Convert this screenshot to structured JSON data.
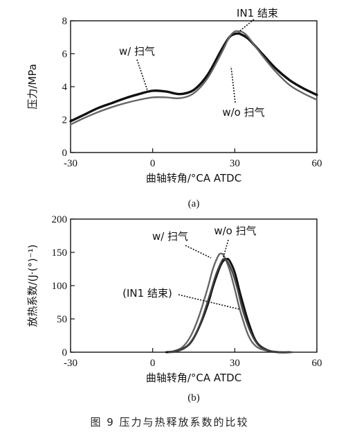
{
  "figure_caption": "图 9   压力与热释放系数的比较",
  "chart_data": [
    {
      "type": "line",
      "subplot_label": "(a)",
      "xlabel": "曲轴转角/°CA ATDC",
      "ylabel": "压力/MPa",
      "xlim": [
        -30,
        60
      ],
      "ylim": [
        0,
        8
      ],
      "xticks": [
        -30,
        0,
        30,
        60
      ],
      "yticks": [
        0,
        2,
        4,
        6,
        8
      ],
      "grid": false,
      "annotations": [
        "w/ 扫气",
        "IN1 结束",
        "w/o 扫气"
      ],
      "series": [
        {
          "name": "w/ 扫气",
          "color": "#111111",
          "x": [
            -30,
            -25,
            -20,
            -15,
            -10,
            -5,
            0,
            5,
            10,
            15,
            20,
            25,
            28,
            30,
            31,
            32,
            35,
            40,
            45,
            50,
            55,
            60
          ],
          "y": [
            1.9,
            2.3,
            2.7,
            3.0,
            3.3,
            3.55,
            3.75,
            3.7,
            3.55,
            3.8,
            4.7,
            6.2,
            7.0,
            7.2,
            7.22,
            7.2,
            6.9,
            6.0,
            5.1,
            4.4,
            3.9,
            3.5
          ]
        },
        {
          "name": "w/o 扫气",
          "color": "#666666",
          "x": [
            -30,
            -25,
            -20,
            -15,
            -10,
            -5,
            0,
            5,
            10,
            15,
            20,
            25,
            28,
            30,
            32,
            33,
            35,
            40,
            45,
            50,
            55,
            60
          ],
          "y": [
            1.7,
            2.1,
            2.45,
            2.75,
            3.0,
            3.2,
            3.35,
            3.35,
            3.3,
            3.6,
            4.5,
            6.0,
            7.0,
            7.35,
            7.35,
            7.3,
            7.0,
            5.9,
            4.9,
            4.1,
            3.6,
            3.2
          ]
        }
      ]
    },
    {
      "type": "line",
      "subplot_label": "(b)",
      "xlabel": "曲轴转角/°CA ATDC",
      "ylabel": "放热系数/(J·(°)⁻¹)",
      "xlim": [
        -30,
        60
      ],
      "ylim": [
        0,
        200
      ],
      "xticks": [
        -30,
        0,
        30,
        60
      ],
      "yticks": [
        0,
        50,
        100,
        150,
        200
      ],
      "grid": false,
      "annotations": [
        "w/ 扫气",
        "w/o 扫气",
        "(IN1 结束)"
      ],
      "series": [
        {
          "name": "w/ 扫气",
          "color": "#666666",
          "x": [
            5,
            8,
            11,
            14,
            17,
            20,
            22,
            24,
            25,
            26,
            28,
            30,
            32,
            35,
            38,
            42,
            46,
            50
          ],
          "y": [
            0,
            2,
            8,
            25,
            55,
            95,
            125,
            145,
            148,
            145,
            125,
            95,
            62,
            25,
            8,
            2,
            0,
            0
          ]
        },
        {
          "name": "w/o 扫气",
          "color": "#111111",
          "x": [
            5,
            8,
            11,
            14,
            17,
            20,
            22,
            24,
            25,
            26,
            27,
            28,
            30,
            32,
            35,
            38,
            42,
            46,
            50
          ],
          "y": [
            0,
            1,
            5,
            15,
            38,
            70,
            98,
            122,
            132,
            138,
            140,
            138,
            120,
            88,
            45,
            15,
            3,
            0,
            0
          ]
        },
        {
          "name": "(IN1 结束)",
          "color": "#444444",
          "x": [
            6,
            9,
            12,
            15,
            18,
            21,
            23,
            25,
            26,
            27,
            29,
            31,
            33,
            36,
            39,
            43,
            47,
            51
          ],
          "y": [
            0,
            2,
            7,
            22,
            50,
            88,
            115,
            135,
            140,
            138,
            122,
            95,
            62,
            28,
            9,
            2,
            0,
            0
          ]
        }
      ]
    }
  ]
}
